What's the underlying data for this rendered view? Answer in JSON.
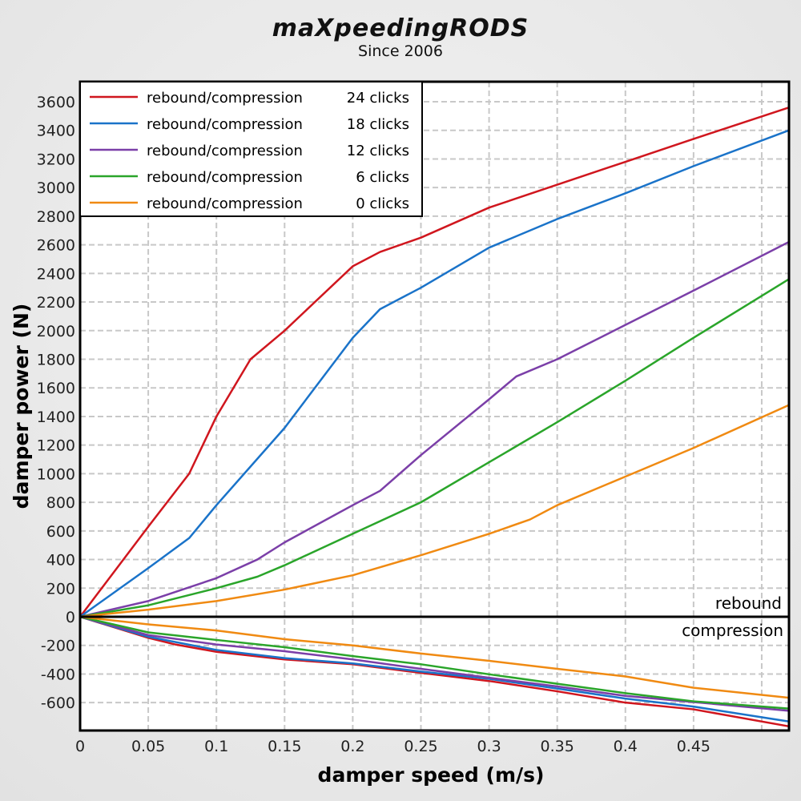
{
  "logo": {
    "text": "maXpeedingRODS",
    "tagline": "Since 2006"
  },
  "chart_data": {
    "type": "line",
    "title": "",
    "xlabel": "damper speed (m/s)",
    "ylabel": "damper power (N)",
    "xlim": [
      0,
      0.52
    ],
    "ylim": [
      -795,
      3740
    ],
    "xticks": [
      0,
      0.05,
      0.1,
      0.15,
      0.2,
      0.25,
      0.3,
      0.35,
      0.4,
      0.45
    ],
    "xtick_labels": [
      "0",
      "0.05",
      "0.1",
      "0.15",
      "0.2",
      "0.25",
      "0.3",
      "0.35",
      "0.4",
      "0.45"
    ],
    "xgrid": [
      0.05,
      0.1,
      0.15,
      0.2,
      0.25,
      0.3,
      0.35,
      0.4,
      0.45,
      0.5
    ],
    "yticks": [
      3600,
      3400,
      3200,
      3000,
      2800,
      2600,
      2400,
      2200,
      2000,
      1800,
      1600,
      1400,
      1200,
      1000,
      800,
      600,
      400,
      200,
      0,
      -200,
      -400,
      -600
    ],
    "grid": true,
    "legend_placement": "top-left",
    "region_labels": {
      "rebound": "rebound",
      "compression": "compression"
    },
    "series": [
      {
        "name": "rebound/compression",
        "clicks": "24 clicks",
        "color": "#d0161e",
        "rebound": [
          [
            0,
            0
          ],
          [
            0.05,
            630
          ],
          [
            0.08,
            1000
          ],
          [
            0.1,
            1400
          ],
          [
            0.125,
            1800
          ],
          [
            0.15,
            2000
          ],
          [
            0.2,
            2450
          ],
          [
            0.22,
            2550
          ],
          [
            0.25,
            2650
          ],
          [
            0.3,
            2860
          ],
          [
            0.35,
            3020
          ],
          [
            0.4,
            3180
          ],
          [
            0.45,
            3340
          ],
          [
            0.52,
            3560
          ]
        ],
        "compression": [
          [
            0,
            0
          ],
          [
            0.05,
            -147
          ],
          [
            0.07,
            -194
          ],
          [
            0.1,
            -245
          ],
          [
            0.15,
            -298
          ],
          [
            0.2,
            -332
          ],
          [
            0.25,
            -392
          ],
          [
            0.3,
            -449
          ],
          [
            0.35,
            -521
          ],
          [
            0.4,
            -600
          ],
          [
            0.45,
            -647
          ],
          [
            0.52,
            -766
          ]
        ]
      },
      {
        "name": "rebound/compression",
        "clicks": "18 clicks",
        "color": "#1a73c9",
        "rebound": [
          [
            0,
            0
          ],
          [
            0.05,
            340
          ],
          [
            0.08,
            550
          ],
          [
            0.1,
            780
          ],
          [
            0.15,
            1320
          ],
          [
            0.2,
            1950
          ],
          [
            0.22,
            2150
          ],
          [
            0.25,
            2300
          ],
          [
            0.3,
            2580
          ],
          [
            0.35,
            2780
          ],
          [
            0.4,
            2960
          ],
          [
            0.45,
            3150
          ],
          [
            0.52,
            3400
          ]
        ],
        "compression": [
          [
            0,
            0
          ],
          [
            0.05,
            -140
          ],
          [
            0.1,
            -232
          ],
          [
            0.15,
            -289
          ],
          [
            0.2,
            -326
          ],
          [
            0.25,
            -383
          ],
          [
            0.3,
            -434
          ],
          [
            0.35,
            -502
          ],
          [
            0.4,
            -572
          ],
          [
            0.45,
            -628
          ],
          [
            0.52,
            -732
          ]
        ]
      },
      {
        "name": "rebound/compression",
        "clicks": "12 clicks",
        "color": "#7b3fa8",
        "rebound": [
          [
            0,
            0
          ],
          [
            0.05,
            110
          ],
          [
            0.1,
            270
          ],
          [
            0.13,
            400
          ],
          [
            0.15,
            520
          ],
          [
            0.2,
            780
          ],
          [
            0.22,
            880
          ],
          [
            0.25,
            1130
          ],
          [
            0.3,
            1520
          ],
          [
            0.32,
            1680
          ],
          [
            0.35,
            1800
          ],
          [
            0.4,
            2040
          ],
          [
            0.45,
            2280
          ],
          [
            0.52,
            2620
          ]
        ],
        "compression": [
          [
            0,
            0
          ],
          [
            0.05,
            -128
          ],
          [
            0.1,
            -194
          ],
          [
            0.15,
            -241
          ],
          [
            0.2,
            -298
          ],
          [
            0.25,
            -364
          ],
          [
            0.3,
            -426
          ],
          [
            0.35,
            -487
          ],
          [
            0.4,
            -553
          ],
          [
            0.45,
            -596
          ],
          [
            0.52,
            -657
          ]
        ]
      },
      {
        "name": "rebound/compression",
        "clicks": "6 clicks",
        "color": "#2aa52a",
        "rebound": [
          [
            0,
            0
          ],
          [
            0.05,
            80
          ],
          [
            0.1,
            200
          ],
          [
            0.13,
            280
          ],
          [
            0.15,
            360
          ],
          [
            0.2,
            580
          ],
          [
            0.25,
            800
          ],
          [
            0.3,
            1080
          ],
          [
            0.35,
            1360
          ],
          [
            0.4,
            1650
          ],
          [
            0.45,
            1950
          ],
          [
            0.52,
            2360
          ]
        ],
        "compression": [
          [
            0,
            0
          ],
          [
            0.05,
            -109
          ],
          [
            0.1,
            -162
          ],
          [
            0.15,
            -213
          ],
          [
            0.2,
            -275
          ],
          [
            0.25,
            -332
          ],
          [
            0.3,
            -402
          ],
          [
            0.35,
            -468
          ],
          [
            0.4,
            -534
          ],
          [
            0.45,
            -591
          ],
          [
            0.52,
            -642
          ]
        ]
      },
      {
        "name": "rebound/compression",
        "clicks": "0 clicks",
        "color": "#f08a12",
        "rebound": [
          [
            0,
            0
          ],
          [
            0.05,
            50
          ],
          [
            0.1,
            110
          ],
          [
            0.15,
            190
          ],
          [
            0.2,
            290
          ],
          [
            0.25,
            430
          ],
          [
            0.3,
            580
          ],
          [
            0.33,
            680
          ],
          [
            0.35,
            780
          ],
          [
            0.4,
            980
          ],
          [
            0.45,
            1180
          ],
          [
            0.52,
            1480
          ]
        ],
        "compression": [
          [
            0,
            0
          ],
          [
            0.05,
            -53
          ],
          [
            0.1,
            -96
          ],
          [
            0.15,
            -157
          ],
          [
            0.2,
            -200
          ],
          [
            0.25,
            -257
          ],
          [
            0.3,
            -308
          ],
          [
            0.35,
            -364
          ],
          [
            0.4,
            -417
          ],
          [
            0.45,
            -496
          ],
          [
            0.52,
            -566
          ]
        ]
      }
    ]
  }
}
